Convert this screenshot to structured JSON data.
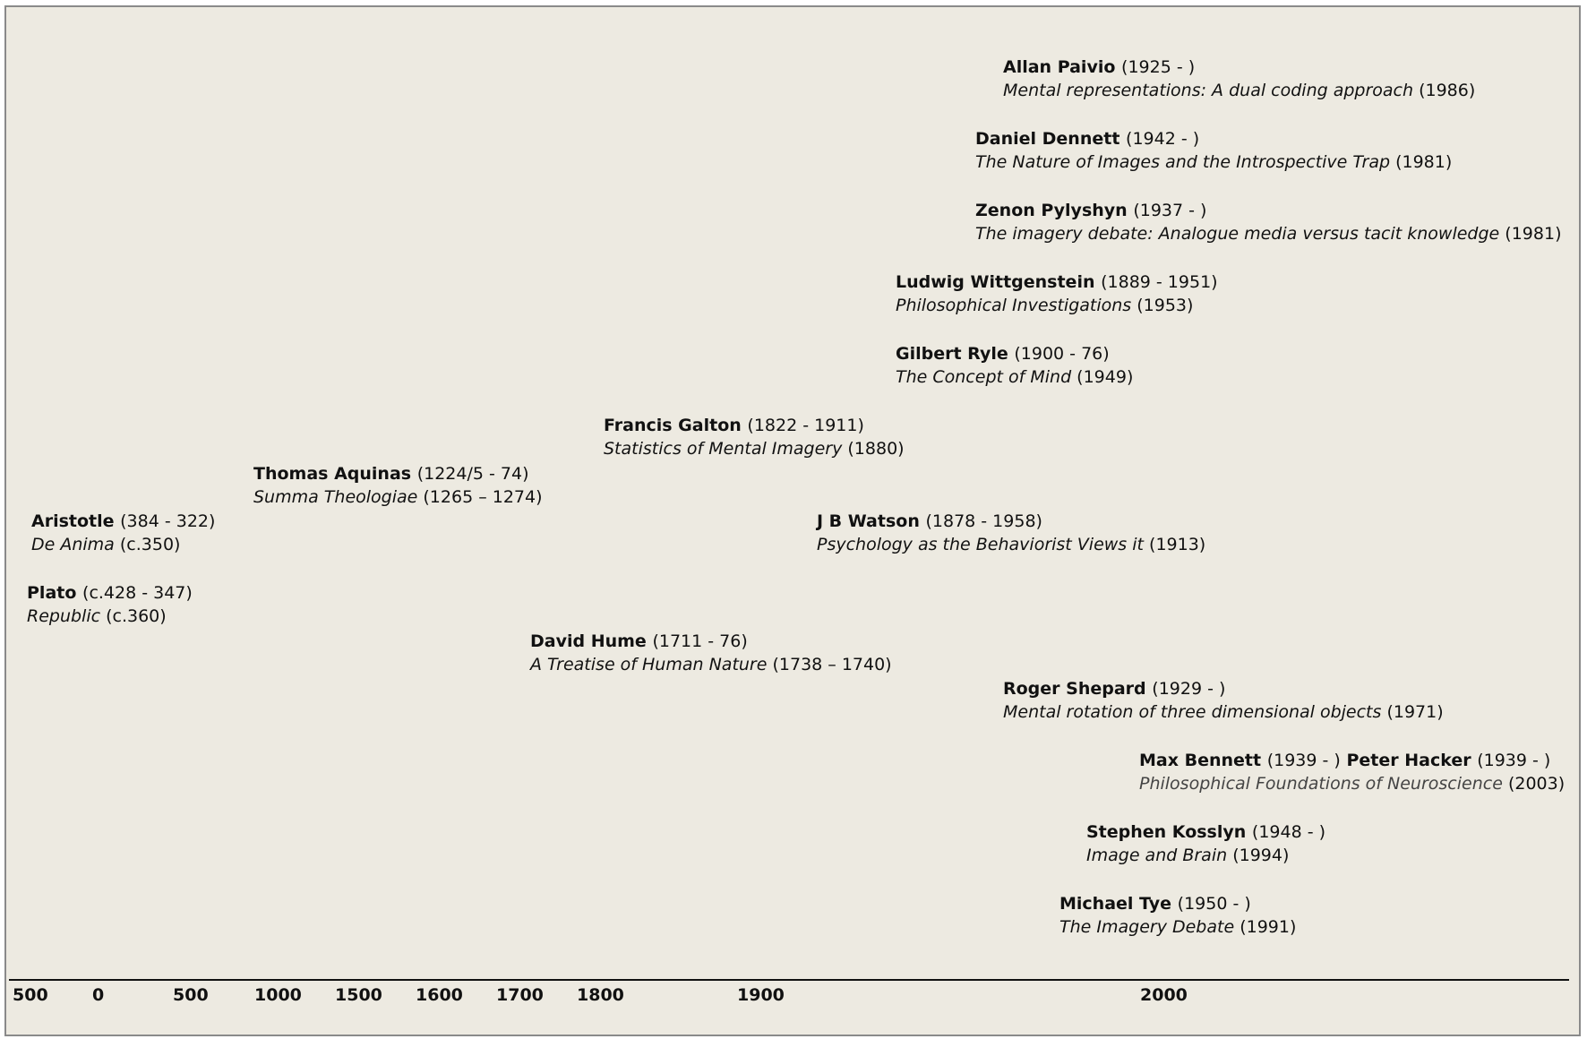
{
  "entries": [
    {
      "name": "Allan Paivio",
      "dates": "(1925 - )",
      "title": "Mental representations: A dual coding approach",
      "year": "(1986)"
    },
    {
      "name": "Daniel Dennett",
      "dates": "(1942 - )",
      "title": "The Nature of Images and the Introspective Trap",
      "year": "(1981)"
    },
    {
      "name": "Zenon Pylyshyn",
      "dates": "(1937 - )",
      "title": "The imagery debate: Analogue media versus tacit knowledge",
      "year": "(1981)"
    },
    {
      "name": "Ludwig Wittgenstein",
      "dates": "(1889 - 1951)",
      "title": "Philosophical Investigations",
      "year": "(1953)"
    },
    {
      "name": "Gilbert Ryle",
      "dates": "(1900 - 76)",
      "title": "The Concept of Mind",
      "year": "(1949)"
    },
    {
      "name": "Francis Galton",
      "dates": "(1822 - 1911)",
      "title": "Statistics of Mental Imagery",
      "year": "(1880)"
    },
    {
      "name": "Thomas Aquinas",
      "dates": "(1224/5 - 74)",
      "title": "Summa Theologiae",
      "year": "(1265 – 1274)"
    },
    {
      "name": "Aristotle",
      "dates": "(384 - 322)",
      "title": "De Anima",
      "year": "(c.350)"
    },
    {
      "name": "J B Watson",
      "dates": "(1878 - 1958)",
      "title": "Psychology as the Behaviorist Views it",
      "year": "(1913)"
    },
    {
      "name": "Plato",
      "dates": "(c.428 - 347)",
      "title": "Republic",
      "year": "(c.360)"
    },
    {
      "name": "David Hume",
      "dates": "(1711 - 76)",
      "title": "A Treatise of Human Nature",
      "year": "(1738 – 1740)"
    },
    {
      "name": "Roger Shepard",
      "dates": "(1929 - )",
      "title": "Mental rotation of three dimensional objects",
      "year": "(1971)"
    },
    {
      "name": "Max Bennett",
      "dates": "(1939 - )",
      "name2": "Peter Hacker",
      "dates2": "(1939 - )",
      "title": "Philosophical Foundations of Neuroscience",
      "year": "(2003)"
    },
    {
      "name": "Stephen Kosslyn",
      "dates": "(1948 - )",
      "title": "Image and Brain",
      "year": "(1994)"
    },
    {
      "name": "Michael Tye",
      "dates": "(1950 - )",
      "title": "The Imagery Debate",
      "year": "(1991)"
    }
  ],
  "axis": {
    "ticks": [
      "500",
      "0",
      "500",
      "1000",
      "1500",
      "1600",
      "1700",
      "1800",
      "1900",
      "2000"
    ]
  }
}
